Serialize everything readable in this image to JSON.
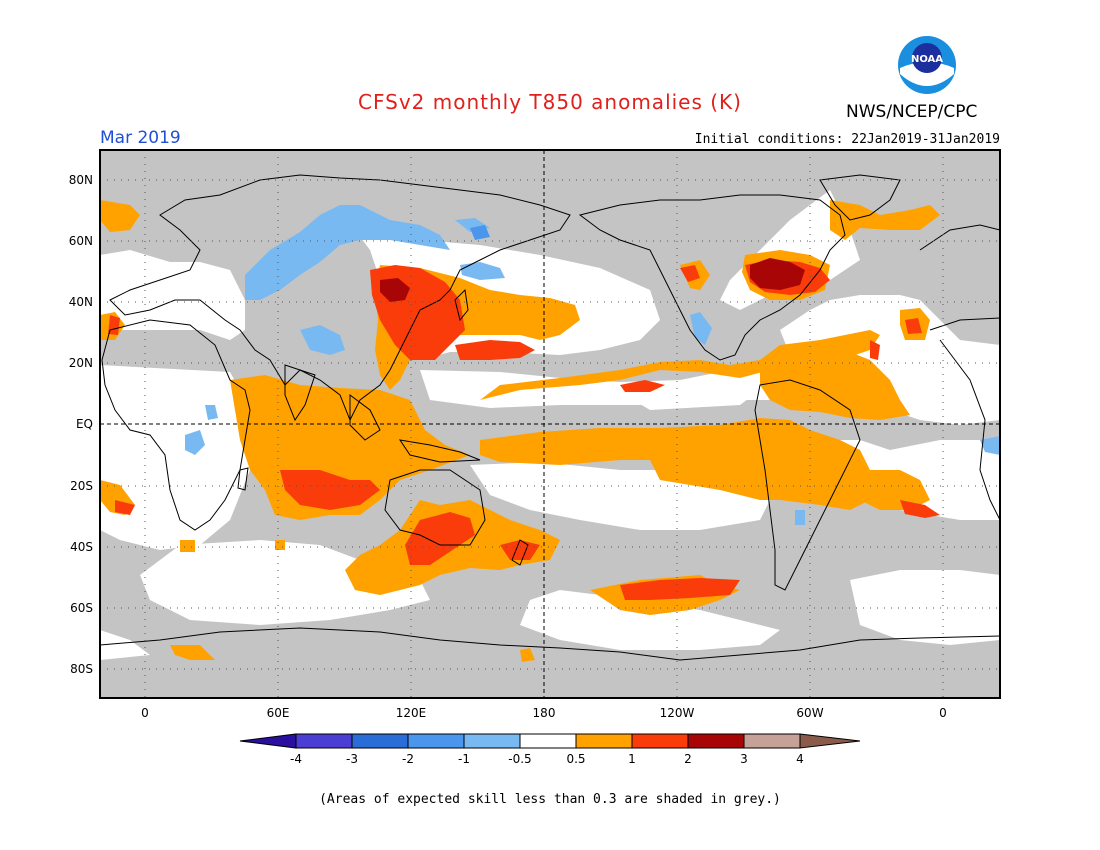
{
  "header": {
    "title": "CFSv2 monthly T850 anomalies (K)",
    "agency": "NWS/NCEP/CPC",
    "valid_month": "Mar 2019",
    "initial_conditions": "Initial conditions: 22Jan2019-31Jan2019",
    "logo_text": "NOAA"
  },
  "map": {
    "lat_labels": [
      "80N",
      "60N",
      "40N",
      "20N",
      "EQ",
      "20S",
      "40S",
      "60S",
      "80S"
    ],
    "lon_labels": [
      "0",
      "60E",
      "120E",
      "180",
      "120W",
      "60W",
      "0"
    ]
  },
  "legend": {
    "labels": [
      "-4",
      "-3",
      "-2",
      "-1",
      "-0.5",
      "0.5",
      "1",
      "2",
      "3",
      "4"
    ],
    "colors": [
      "#2b0fa0",
      "#4a3ed3",
      "#2a6dd6",
      "#4a96ec",
      "#79b9f2",
      "#ffffff",
      "#ffa200",
      "#fa3c0a",
      "#a80606",
      "#c6a198",
      "#8a5a4a"
    ]
  },
  "footnote": "(Areas of expected skill less than 0.3 are shaded in grey.)",
  "colors": {
    "skill_grey": "#c4c4c4",
    "title_red": "#e0201c",
    "date_blue": "#1f4fd6"
  }
}
